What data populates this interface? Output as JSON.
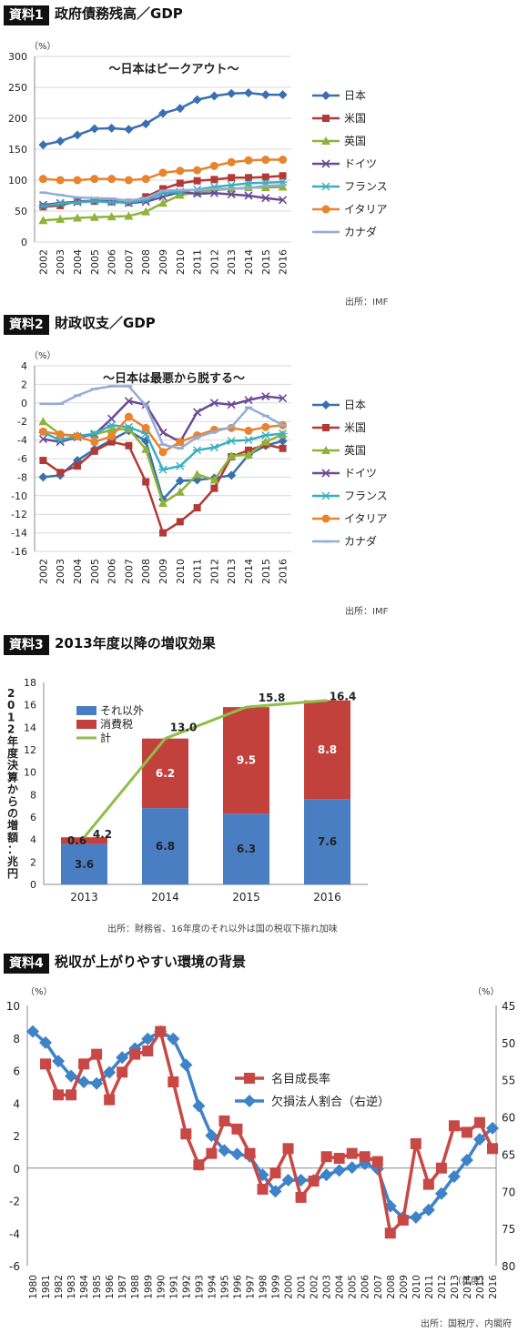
{
  "sections": [
    {
      "tag": "資料1",
      "title": "政府債務残高／GDP",
      "source": "出所：IMF"
    },
    {
      "tag": "資料2",
      "title": "財政収支／GDP",
      "source": "出所：IMF"
    },
    {
      "tag": "資料3",
      "title": "2013年度以降の増収効果",
      "source": "出所：財務省、16年度のそれ以外は国の税収下振れ加味"
    },
    {
      "tag": "資料4",
      "title": "税収が上がりやすい環境の背景",
      "source": "出所：国税庁、内閣府"
    }
  ],
  "colors": {
    "日本": "#3a6fb0",
    "米国": "#b23a36",
    "英国": "#8fb33a",
    "ドイツ": "#6a4a96",
    "フランス": "#3aaec0",
    "イタリア": "#e8832e",
    "カナダ": "#93acd6",
    "それ以外": "#4a7ec2",
    "消費税": "#c2413c",
    "計": "#8fbe4a",
    "名目成長率": "#c84846",
    "欠損法人割合": "#3e82c8"
  },
  "chart_data": [
    {
      "type": "line",
      "annotation": "〜日本はピークアウト〜",
      "unit": "（%）",
      "ylim": [
        0,
        300
      ],
      "yticks": [
        0,
        50,
        100,
        150,
        200,
        250,
        300
      ],
      "x": [
        "2002",
        "2003",
        "2004",
        "2005",
        "2006",
        "2007",
        "2008",
        "2009",
        "2010",
        "2011",
        "2012",
        "2013",
        "2014",
        "2015",
        "2016"
      ],
      "legend_position": "right",
      "grid": true,
      "series": [
        {
          "name": "日本",
          "marker": "diamond",
          "values": [
            157,
            163,
            173,
            183,
            184,
            182,
            191,
            208,
            216,
            230,
            236,
            240,
            241,
            238,
            238
          ]
        },
        {
          "name": "米国",
          "marker": "square",
          "values": [
            57,
            59,
            66,
            66,
            65,
            64,
            73,
            86,
            95,
            99,
            101,
            104,
            104,
            105,
            107
          ]
        },
        {
          "name": "英国",
          "marker": "triangle",
          "values": [
            35,
            37,
            39,
            40,
            41,
            42,
            49,
            63,
            76,
            80,
            84,
            86,
            88,
            88,
            89
          ]
        },
        {
          "name": "ドイツ",
          "marker": "x",
          "values": [
            60,
            63,
            65,
            67,
            66,
            63,
            65,
            73,
            81,
            78,
            79,
            77,
            75,
            71,
            68
          ]
        },
        {
          "name": "フランス",
          "marker": "star",
          "values": [
            58,
            62,
            64,
            66,
            64,
            64,
            68,
            79,
            81,
            85,
            89,
            92,
            95,
            96,
            97
          ]
        },
        {
          "name": "イタリア",
          "marker": "circle",
          "values": [
            102,
            100,
            100,
            102,
            102,
            100,
            102,
            112,
            115,
            116,
            123,
            129,
            132,
            133,
            133
          ]
        },
        {
          "name": "カナダ",
          "marker": "dash",
          "values": [
            80,
            76,
            72,
            71,
            70,
            67,
            71,
            83,
            84,
            84,
            86,
            86,
            87,
            91,
            92
          ]
        }
      ]
    },
    {
      "type": "line",
      "annotation": "〜日本は最悪から脱する〜",
      "unit": "（%）",
      "ylim": [
        -16,
        4
      ],
      "yticks": [
        -16,
        -14,
        -12,
        -10,
        -8,
        -6,
        -4,
        -2,
        0,
        2,
        4
      ],
      "x": [
        "2002",
        "2003",
        "2004",
        "2005",
        "2006",
        "2007",
        "2008",
        "2009",
        "2010",
        "2011",
        "2012",
        "2013",
        "2014",
        "2015",
        "2016"
      ],
      "legend_position": "right",
      "grid": true,
      "series": [
        {
          "name": "日本",
          "marker": "diamond",
          "values": [
            -8.0,
            -7.8,
            -6.2,
            -5.0,
            -4.0,
            -3.0,
            -4.1,
            -10.4,
            -8.4,
            -8.3,
            -8.1,
            -7.8,
            -5.6,
            -4.6,
            -4.1
          ]
        },
        {
          "name": "米国",
          "marker": "square",
          "values": [
            -6.2,
            -7.5,
            -6.8,
            -5.2,
            -4.2,
            -4.6,
            -8.5,
            -14.0,
            -12.8,
            -11.3,
            -9.2,
            -5.8,
            -5.1,
            -4.5,
            -4.9
          ]
        },
        {
          "name": "英国",
          "marker": "triangle",
          "values": [
            -2.0,
            -3.4,
            -3.5,
            -3.4,
            -2.9,
            -2.8,
            -5.0,
            -10.8,
            -9.6,
            -7.7,
            -8.3,
            -5.7,
            -5.6,
            -4.2,
            -3.4
          ]
        },
        {
          "name": "ドイツ",
          "marker": "x",
          "values": [
            -3.9,
            -4.2,
            -3.7,
            -3.4,
            -1.7,
            0.2,
            -0.2,
            -3.2,
            -4.2,
            -1.0,
            0.0,
            -0.2,
            0.3,
            0.7,
            0.5
          ]
        },
        {
          "name": "フランス",
          "marker": "star",
          "values": [
            -3.2,
            -4.0,
            -3.6,
            -3.3,
            -2.4,
            -2.6,
            -3.3,
            -7.2,
            -6.8,
            -5.1,
            -4.8,
            -4.1,
            -4.0,
            -3.5,
            -3.3
          ]
        },
        {
          "name": "イタリア",
          "marker": "circle",
          "values": [
            -3.1,
            -3.4,
            -3.6,
            -4.2,
            -3.6,
            -1.5,
            -2.7,
            -5.3,
            -4.2,
            -3.5,
            -2.9,
            -2.7,
            -3.0,
            -2.6,
            -2.4
          ]
        },
        {
          "name": "カナダ",
          "marker": "dash",
          "values": [
            -0.1,
            -0.1,
            0.8,
            1.5,
            1.8,
            1.8,
            -0.3,
            -4.5,
            -4.9,
            -3.7,
            -3.1,
            -2.6,
            -0.5,
            -1.4,
            -2.4
          ]
        }
      ]
    },
    {
      "type": "bar",
      "ylabel": "2012年度決算からの増額：兆円",
      "ylim": [
        0,
        18
      ],
      "yticks": [
        0,
        2,
        4,
        6,
        8,
        10,
        12,
        14,
        16,
        18
      ],
      "categories": [
        "2013",
        "2014",
        "2015",
        "2016"
      ],
      "stacked": true,
      "legend_position": "top-left",
      "grid": false,
      "series": [
        {
          "name": "それ以外",
          "values": [
            3.6,
            6.8,
            6.3,
            7.6
          ]
        },
        {
          "name": "消費税",
          "values": [
            0.6,
            6.2,
            9.5,
            8.8
          ]
        }
      ],
      "line_series": {
        "name": "計",
        "values": [
          4.2,
          13.0,
          15.8,
          16.4
        ]
      }
    },
    {
      "type": "line",
      "y_unit_left": "（%）",
      "y_unit_right": "（%）",
      "x_unit": "（年度）",
      "ylim_left": [
        -6,
        10
      ],
      "yticks_left": [
        -6,
        -4,
        -2,
        0,
        2,
        4,
        6,
        8,
        10
      ],
      "ylim_right": [
        80,
        45
      ],
      "yticks_right": [
        45,
        50,
        55,
        60,
        65,
        70,
        75,
        80
      ],
      "right_axis_inverted": true,
      "legend_position": "top-right",
      "grid": false,
      "x": [
        "1980",
        "1981",
        "1982",
        "1983",
        "1984",
        "1985",
        "1986",
        "1987",
        "1988",
        "1989",
        "1990",
        "1991",
        "1992",
        "1993",
        "1994",
        "1995",
        "1996",
        "1997",
        "1998",
        "1999",
        "2000",
        "2001",
        "2002",
        "2003",
        "2004",
        "2005",
        "2006",
        "2007",
        "2008",
        "2009",
        "2010",
        "2011",
        "2012",
        "2013",
        "2014",
        "2015",
        "2016"
      ],
      "series": [
        {
          "name": "名目成長率",
          "axis": "left",
          "marker": "square",
          "values": [
            null,
            6.4,
            4.5,
            4.5,
            6.4,
            7.0,
            4.2,
            5.9,
            7.0,
            7.2,
            8.4,
            5.3,
            2.1,
            0.2,
            0.9,
            2.9,
            2.4,
            0.9,
            -1.3,
            -0.3,
            1.2,
            -1.8,
            -0.8,
            0.7,
            0.6,
            0.9,
            0.7,
            0.4,
            -4.0,
            -3.2,
            1.5,
            -1.0,
            0.0,
            2.6,
            2.2,
            2.8,
            1.2
          ]
        },
        {
          "name": "欠損法人割合（右逆）",
          "axis": "right",
          "marker": "diamond",
          "values": [
            48.5,
            50.0,
            52.5,
            54.5,
            55.3,
            55.5,
            54.0,
            52.0,
            50.8,
            49.5,
            48.5,
            49.5,
            53.0,
            58.5,
            62.5,
            64.5,
            65.0,
            65.3,
            67.8,
            70.0,
            68.5,
            68.5,
            68.5,
            67.8,
            67.2,
            66.8,
            66.3,
            67.0,
            72.0,
            73.5,
            73.5,
            72.5,
            70.3,
            68.0,
            65.8,
            63.0,
            61.5
          ]
        }
      ]
    }
  ]
}
